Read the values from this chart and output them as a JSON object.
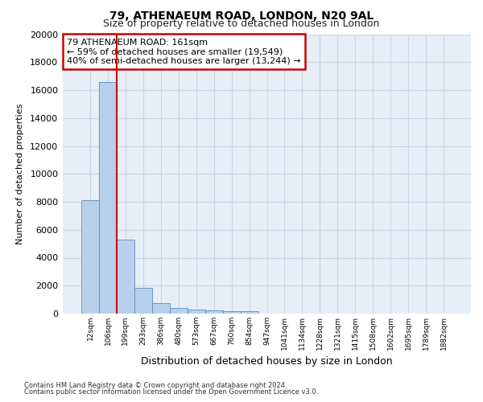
{
  "title1": "79, ATHENAEUM ROAD, LONDON, N20 9AL",
  "title2": "Size of property relative to detached houses in London",
  "xlabel": "Distribution of detached houses by size in London",
  "ylabel": "Number of detached properties",
  "bar_labels": [
    "12sqm",
    "106sqm",
    "199sqm",
    "293sqm",
    "386sqm",
    "480sqm",
    "573sqm",
    "667sqm",
    "760sqm",
    "854sqm",
    "947sqm",
    "1041sqm",
    "1134sqm",
    "1228sqm",
    "1321sqm",
    "1415sqm",
    "1508sqm",
    "1602sqm",
    "1695sqm",
    "1789sqm",
    "1882sqm"
  ],
  "bar_values": [
    8100,
    16600,
    5300,
    1850,
    750,
    380,
    300,
    220,
    170,
    150,
    0,
    0,
    0,
    0,
    0,
    0,
    0,
    0,
    0,
    0,
    0
  ],
  "bar_color": "#b8d0eb",
  "bar_edge_color": "#5b8cbf",
  "grid_color": "#c8d4e8",
  "bg_color": "#e8eef8",
  "vline_color": "#cc0000",
  "annotation_text": "79 ATHENAEUM ROAD: 161sqm\n← 59% of detached houses are smaller (19,549)\n40% of semi-detached houses are larger (13,244) →",
  "annotation_box_color": "#ffffff",
  "annotation_box_edge": "#cc0000",
  "ylim": [
    0,
    20000
  ],
  "yticks": [
    0,
    2000,
    4000,
    6000,
    8000,
    10000,
    12000,
    14000,
    16000,
    18000,
    20000
  ],
  "footnote1": "Contains HM Land Registry data © Crown copyright and database right 2024.",
  "footnote2": "Contains public sector information licensed under the Open Government Licence v3.0."
}
